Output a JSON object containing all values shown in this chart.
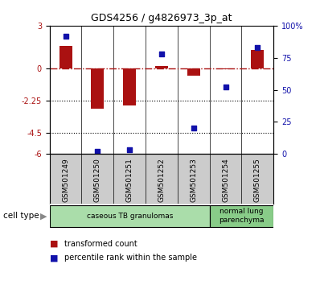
{
  "title": "GDS4256 / g4826973_3p_at",
  "samples": [
    "GSM501249",
    "GSM501250",
    "GSM501251",
    "GSM501252",
    "GSM501253",
    "GSM501254",
    "GSM501255"
  ],
  "transformed_count": [
    1.6,
    -2.8,
    -2.6,
    0.15,
    -0.5,
    -0.05,
    1.3
  ],
  "percentile_rank": [
    92,
    2,
    3,
    78,
    20,
    52,
    83
  ],
  "ylim_left": [
    -6,
    3
  ],
  "ylim_right": [
    0,
    100
  ],
  "yticks_left": [
    3,
    0,
    -2.25,
    -4.5,
    -6
  ],
  "yticks_right": [
    100,
    75,
    50,
    25,
    0
  ],
  "ytick_labels_left": [
    "3",
    "0",
    "-2.25",
    "-4.5",
    "-6"
  ],
  "ytick_labels_right": [
    "100%",
    "75",
    "50",
    "25",
    "0"
  ],
  "hlines": [
    -2.25,
    -4.5
  ],
  "dashed_hline": 0,
  "bar_color": "#aa1111",
  "scatter_color": "#1111aa",
  "bar_width": 0.4,
  "cell_type_groups": [
    {
      "label": "caseous TB granulomas",
      "samples": [
        0,
        1,
        2,
        3,
        4
      ],
      "color": "#aaddaa"
    },
    {
      "label": "normal lung\nparenchyma",
      "samples": [
        5,
        6
      ],
      "color": "#88cc88"
    }
  ],
  "legend_bar_label": "transformed count",
  "legend_scatter_label": "percentile rank within the sample",
  "cell_type_label": "cell type",
  "xtick_bg": "#cccccc",
  "bg_color": "#ffffff"
}
